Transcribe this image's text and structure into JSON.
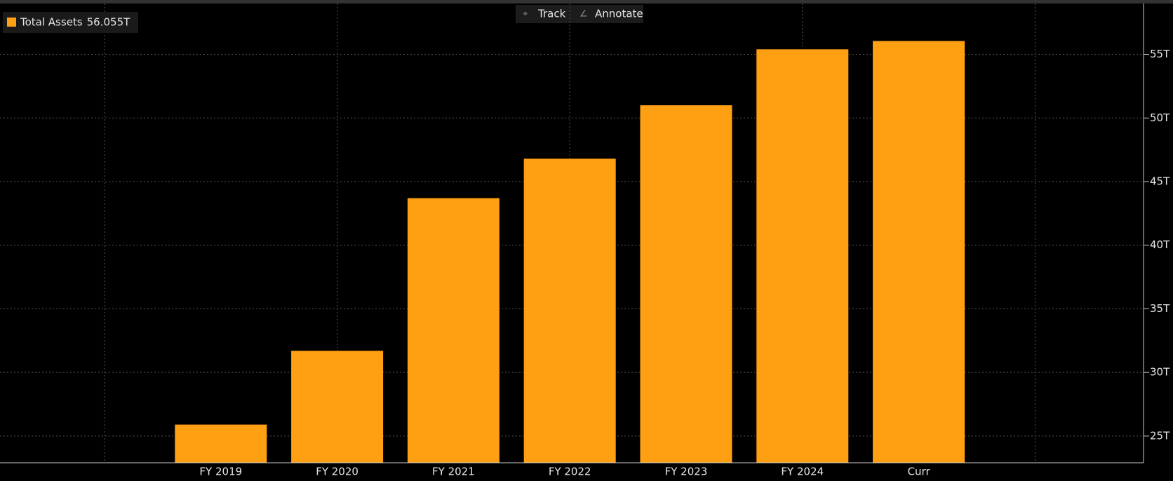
{
  "ui": {
    "toolbar": [
      "Track",
      "Annotate"
    ]
  },
  "chart_data": {
    "type": "bar",
    "categories": [
      null,
      "FY 2019",
      "FY 2020",
      "FY 2021",
      "FY 2022",
      "FY 2023",
      "FY 2024",
      "Curr",
      null
    ],
    "series": [
      {
        "name": "Total Assets",
        "color": "#ffa012",
        "legend_value_label": "56.055T",
        "values": [
          null,
          25.9,
          31.7,
          43.7,
          46.8,
          51.0,
          55.4,
          56.055,
          null
        ]
      }
    ],
    "ylim": [
      22.9,
      59
    ],
    "yticks": [
      {
        "value": 25,
        "label": "25T"
      },
      {
        "value": 30,
        "label": "30T"
      },
      {
        "value": 35,
        "label": "35T"
      },
      {
        "value": 40,
        "label": "40T"
      },
      {
        "value": 45,
        "label": "45T"
      },
      {
        "value": 50,
        "label": "50T"
      },
      {
        "value": 55,
        "label": "55T"
      }
    ],
    "grid": true,
    "legend": "top-left"
  }
}
